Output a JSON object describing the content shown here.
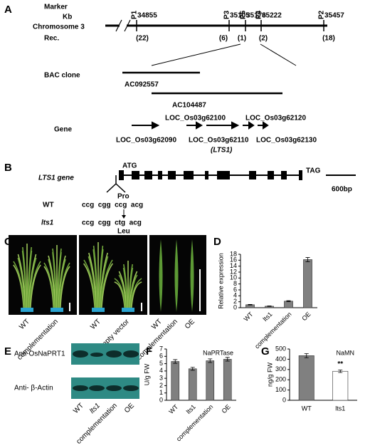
{
  "panels": {
    "A": {
      "letter": "A",
      "marker_label": "Marker",
      "kb_label": "Kb",
      "chromosome": "Chromosome 3",
      "rec_label": "Rec.",
      "markers": [
        {
          "name": "P1",
          "kb": 34855,
          "rec": "(22)"
        },
        {
          "name": "P3",
          "kb": 35105,
          "rec": "(6)"
        },
        {
          "name": "P5",
          "kb": 35176,
          "rec": "(1)"
        },
        {
          "name": "P4",
          "kb": 35222,
          "rec": "(2)"
        },
        {
          "name": "P2",
          "kb": 35457,
          "rec": "(18)"
        }
      ],
      "bac_label": "BAC  clone",
      "bacs": [
        "AC092557",
        "AC104487"
      ],
      "gene_label": "Gene",
      "genes": [
        "LOC_Os03g62090",
        "LOC_Os03g62100",
        "LOC_Os03g62110",
        "LOC_Os03g62120",
        "LOC_Os03g62130"
      ],
      "gene_note": "(LTS1)"
    },
    "B": {
      "letter": "B",
      "gene_name": "LTS1 gene",
      "start": "ATG",
      "stop": "TAG",
      "scale": "600bp",
      "wt": "WT",
      "wt_seq": "ccg  cgg  ccg  acg",
      "wt_aa": "Pro",
      "mutant": "lts1",
      "mutant_seq": "ccg  cgg  ctg  acg",
      "mutant_aa": "Leu"
    },
    "C": {
      "letter": "C",
      "labels": [
        "WT",
        "complementation",
        "WT",
        "empty vector",
        "WT",
        "complementation",
        "OE"
      ]
    },
    "E": {
      "letter": "E",
      "antibodies": [
        "Anti-OsNaPRT1",
        "Anti- β-Actin"
      ],
      "lanes": [
        "WT",
        "lts1",
        "complementation",
        "OE"
      ]
    }
  },
  "chart_data": [
    {
      "type": "bar",
      "panel": "D",
      "ylabel": "Relative expression",
      "categories": [
        "WT",
        "lts1",
        "complementation",
        "OE"
      ],
      "values": [
        1.0,
        0.5,
        2.2,
        16.2
      ],
      "errors": [
        0.1,
        0.08,
        0.15,
        0.7
      ],
      "colors": [
        "#808080",
        "#808080",
        "#808080",
        "#808080"
      ],
      "ylim": [
        0,
        18
      ],
      "yticks": [
        0,
        2,
        4,
        6,
        8,
        10,
        12,
        14,
        16,
        18
      ],
      "label_rotation": -45
    },
    {
      "type": "bar",
      "panel": "F",
      "ylabel": "U/g FW",
      "inner_title": "NaPRTase",
      "categories": [
        "WT",
        "lts1",
        "complementation",
        "OE"
      ],
      "values": [
        5.3,
        4.3,
        5.4,
        5.6
      ],
      "errors": [
        0.25,
        0.2,
        0.25,
        0.25
      ],
      "colors": [
        "#808080",
        "#808080",
        "#808080",
        "#808080"
      ],
      "ylim": [
        0,
        7
      ],
      "yticks": [
        0,
        1,
        2,
        3,
        4,
        5,
        6,
        7
      ],
      "label_rotation": -45
    },
    {
      "type": "bar",
      "panel": "G",
      "ylabel": "ng/g FW",
      "inner_title": "NaMN",
      "categories": [
        "WT",
        "lts1"
      ],
      "values": [
        435,
        283
      ],
      "errors": [
        20,
        12
      ],
      "colors": [
        "#808080",
        "#ffffff"
      ],
      "ylim": [
        0,
        500
      ],
      "yticks": [
        0,
        100,
        200,
        300,
        400,
        500
      ],
      "label_rotation": 0,
      "annotations": [
        {
          "text": "**",
          "category": "lts1"
        }
      ]
    }
  ]
}
